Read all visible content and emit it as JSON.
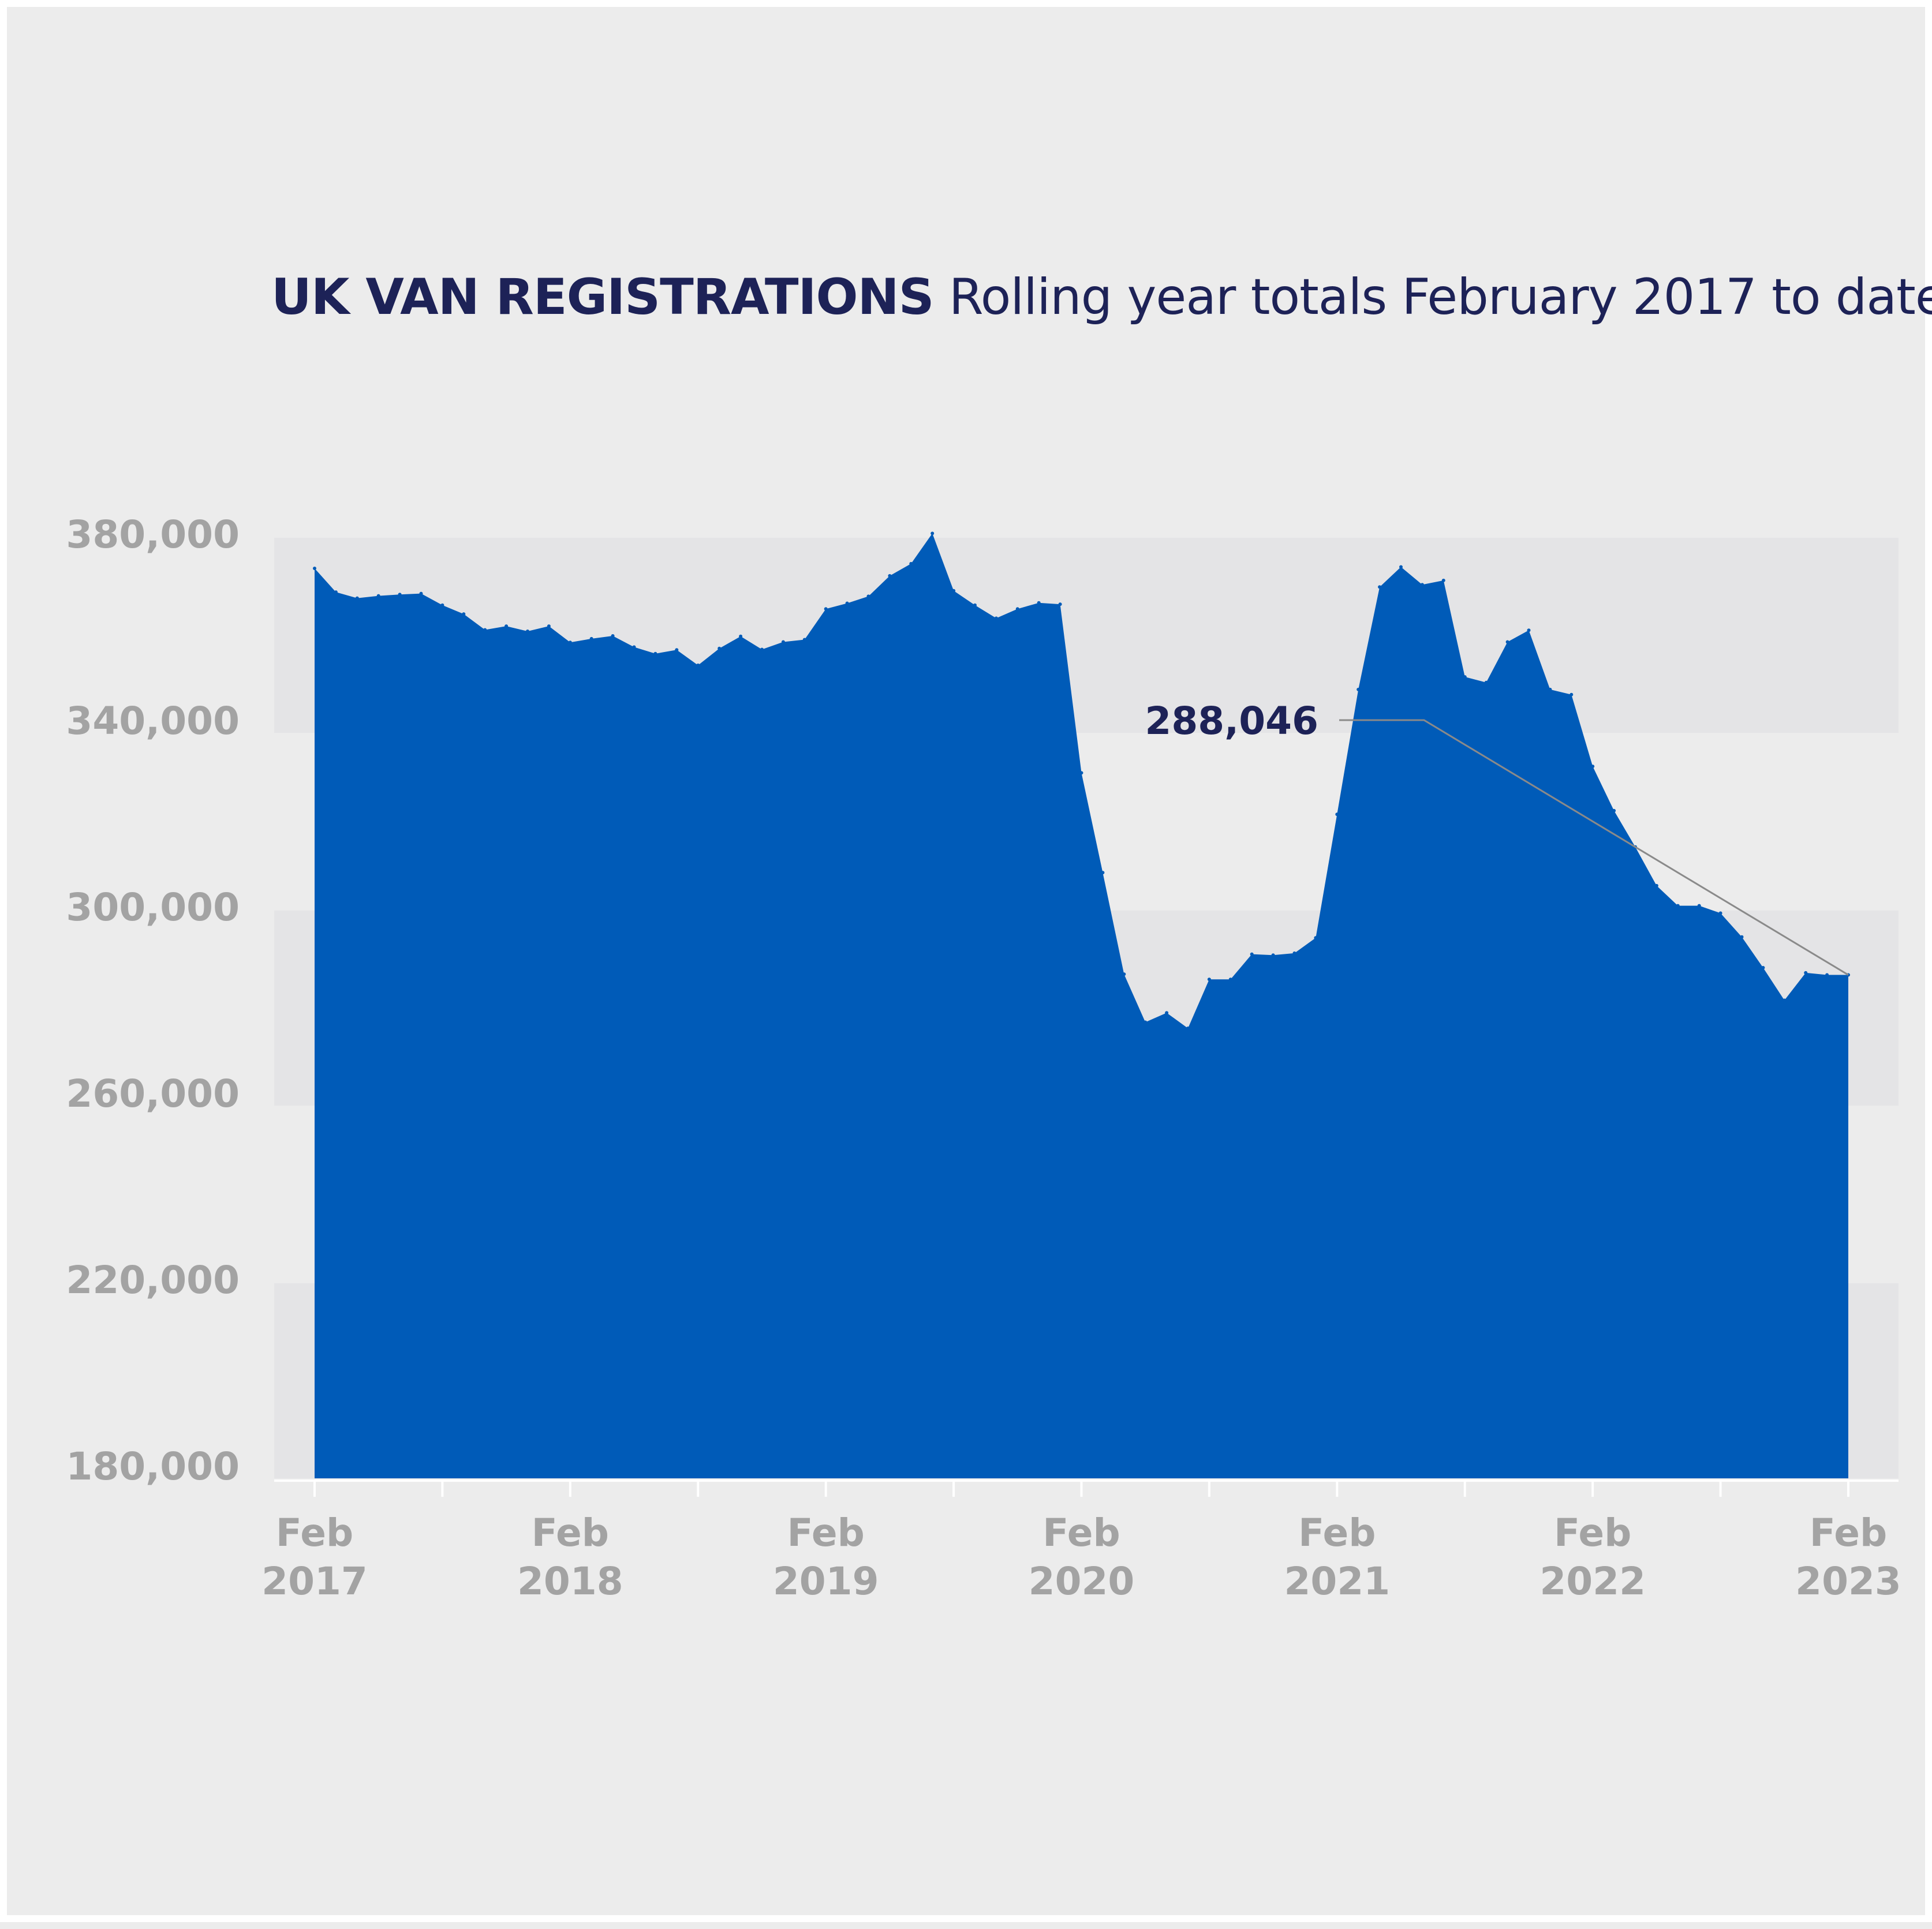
{
  "title": {
    "bold": "UK VAN REGISTRATIONS",
    "light": "Rolling year totals February 2017 to date"
  },
  "colors": {
    "background": "#ececec",
    "band": "#e4e4e6",
    "area": "#005bb8",
    "title": "#1d2257",
    "tick": "#a3a3a3",
    "leader": "#8a8a8a"
  },
  "chart_data": {
    "type": "area",
    "title": "UK VAN REGISTRATIONS Rolling year totals February 2017 to date",
    "xlabel": "",
    "ylabel": "",
    "ylim": [
      180000,
      380000
    ],
    "grid": "alternating horizontal bands",
    "y_ticks": [
      "380,000",
      "340,000",
      "300,000",
      "260,000",
      "220,000",
      "180,000"
    ],
    "y_tick_values": [
      380000,
      340000,
      300000,
      260000,
      220000,
      180000
    ],
    "x_ticks": [
      {
        "month": "Feb",
        "year": "2017"
      },
      {
        "month": "Feb",
        "year": "2018"
      },
      {
        "month": "Feb",
        "year": "2019"
      },
      {
        "month": "Feb",
        "year": "2020"
      },
      {
        "month": "Feb",
        "year": "2021"
      },
      {
        "month": "Feb",
        "year": "2022"
      },
      {
        "month": "Feb",
        "year": "2023"
      }
    ],
    "x_start": "2017-02",
    "series": [
      {
        "x": [
          "2017-02",
          "2017-03",
          "2017-04",
          "2017-05",
          "2017-06",
          "2017-07",
          "2017-08",
          "2017-09",
          "2017-10",
          "2017-11",
          "2017-12",
          "2018-01",
          "2018-02",
          "2018-03",
          "2018-04",
          "2018-05",
          "2018-06",
          "2018-07",
          "2018-08",
          "2018-09",
          "2018-10",
          "2018-11",
          "2018-12",
          "2019-01",
          "2019-02",
          "2019-03",
          "2019-04",
          "2019-05",
          "2019-06",
          "2019-07",
          "2019-08",
          "2019-09",
          "2019-10",
          "2019-11",
          "2019-12",
          "2020-01",
          "2020-02",
          "2020-03",
          "2020-04",
          "2020-05",
          "2020-06",
          "2020-07",
          "2020-08",
          "2020-09",
          "2020-10",
          "2020-11",
          "2020-12",
          "2021-01",
          "2021-02",
          "2021-03",
          "2021-04",
          "2021-05",
          "2021-06",
          "2021-07",
          "2021-08",
          "2021-09",
          "2021-10",
          "2021-11",
          "2021-12",
          "2022-01",
          "2022-02",
          "2022-03",
          "2022-04",
          "2022-05",
          "2022-06",
          "2022-07",
          "2022-08",
          "2022-09",
          "2022-10",
          "2022-11",
          "2022-12",
          "2023-01",
          "2023-02"
        ],
        "values": [
          375300,
          370200,
          368900,
          369400,
          369700,
          369900,
          367400,
          365500,
          362100,
          362900,
          361800,
          362900,
          359400,
          360200,
          360800,
          358400,
          357000,
          357800,
          354500,
          358100,
          360700,
          357900,
          359500,
          360000,
          366600,
          367800,
          369300,
          373700,
          376300,
          382800,
          370500,
          367400,
          364600,
          366600,
          367900,
          367600,
          331400,
          310000,
          288200,
          277900,
          279900,
          276600,
          287100,
          287100,
          292500,
          292300,
          292700,
          296000,
          322500,
          349300,
          371300,
          375600,
          371800,
          372700,
          352000,
          350800,
          359500,
          362000,
          349300,
          348200,
          332800,
          323300,
          315500,
          307200,
          302900,
          302900,
          301300,
          296200,
          289600,
          282600,
          288500,
          288046,
          288046
        ]
      }
    ],
    "annotations": [
      {
        "label": "288,046",
        "value": 288046,
        "x": "2023-02"
      }
    ]
  }
}
